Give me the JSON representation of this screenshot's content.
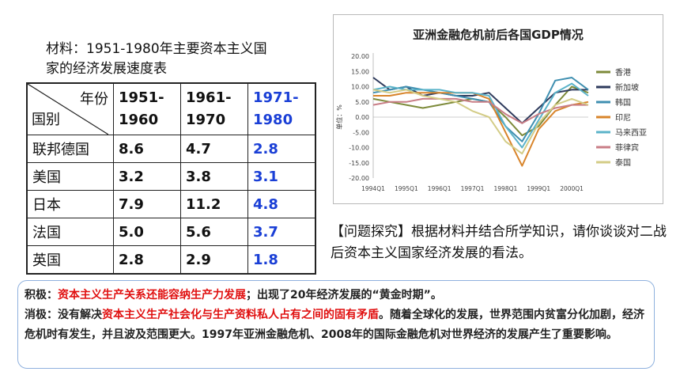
{
  "material": {
    "caption_line1": "材料：1951-1980年主要资本主义国",
    "caption_line2": "家的经济发展速度表"
  },
  "table": {
    "corner_top": "年份",
    "corner_bottom": "国别",
    "periods": [
      {
        "line1": "1951-",
        "line2": "1960"
      },
      {
        "line1": "1961-",
        "line2": "1970"
      },
      {
        "line1": "1971-",
        "line2": "1980"
      }
    ],
    "rows": [
      {
        "country": "联邦德国",
        "values": [
          "8.6",
          "4.7",
          "2.8"
        ]
      },
      {
        "country": "美国",
        "values": [
          "3.2",
          "3.8",
          "3.1"
        ]
      },
      {
        "country": "日本",
        "values": [
          "7.9",
          "11.2",
          "4.8"
        ]
      },
      {
        "country": "法国",
        "values": [
          "5.0",
          "5.6",
          "3.7"
        ]
      },
      {
        "country": "英国",
        "values": [
          "2.8",
          "2.9",
          "1.8"
        ]
      }
    ],
    "highlight_color": "#1a3fd6"
  },
  "chart_data": {
    "type": "line",
    "title": "亚洲金融危机前后各国GDP情况",
    "ylabel": "单位：%",
    "xlabel": "",
    "ylim": [
      -20,
      20
    ],
    "yticks": [
      "20.00",
      "15.00",
      "10.00",
      "5.00",
      "0.00",
      "-5.00",
      "-10.00",
      "-15.00",
      "-20.00"
    ],
    "x": [
      "1994Q1",
      "1994Q3",
      "1995Q1",
      "1995Q3",
      "1996Q1",
      "1996Q3",
      "1997Q1",
      "1997Q3",
      "1998Q1",
      "1998Q3",
      "1999Q1",
      "1999Q3",
      "2000Q1",
      "2000Q3"
    ],
    "xtick_labels": [
      "1994Q1",
      "1995Q1",
      "1996Q1",
      "1997Q1",
      "1998Q1",
      "1999Q1",
      "2000Q1"
    ],
    "legend_position": "right",
    "grid": false,
    "series": [
      {
        "name": "香港",
        "color": "#7d8a3a",
        "values": [
          6,
          5,
          4,
          3,
          4,
          5,
          6,
          5,
          0,
          -6,
          -3,
          4,
          10,
          8
        ]
      },
      {
        "name": "新加坡",
        "color": "#2e3a5c",
        "values": [
          13,
          9,
          10,
          7,
          8,
          7,
          7,
          8,
          3,
          -2,
          3,
          8,
          9,
          9
        ]
      },
      {
        "name": "韩国",
        "color": "#3f8fb0",
        "values": [
          8,
          9,
          10,
          9,
          8,
          7,
          6,
          5,
          -3,
          -8,
          1,
          12,
          13,
          9
        ]
      },
      {
        "name": "印尼",
        "color": "#d8842a",
        "values": [
          7,
          7,
          8,
          8,
          8,
          8,
          8,
          6,
          -5,
          -16,
          -4,
          2,
          4,
          5
        ]
      },
      {
        "name": "马来西亚",
        "color": "#5bb3c9",
        "values": [
          9,
          10,
          9,
          9,
          9,
          8,
          8,
          7,
          -3,
          -10,
          -1,
          8,
          11,
          7
        ]
      },
      {
        "name": "菲律宾",
        "color": "#c87d86",
        "values": [
          4,
          5,
          5,
          6,
          6,
          6,
          5,
          5,
          1,
          -2,
          1,
          3,
          4,
          4
        ]
      },
      {
        "name": "泰国",
        "color": "#d3cc86",
        "values": [
          9,
          8,
          9,
          7,
          6,
          5,
          2,
          0,
          -8,
          -12,
          -2,
          4,
          6,
          4
        ]
      }
    ]
  },
  "question": {
    "text": "【问题探究】根据材料并结合所学知识，请你谈谈对二战后资本主义国家经济发展的看法。"
  },
  "answer": {
    "positive_prefix": "积极：",
    "positive_highlight": "资本主义生产关系还能容纳生产力发展",
    "positive_rest": "；出现了20年经济发展的“黄金时期”。",
    "negative_prefix": "消极：没有解决",
    "negative_highlight": "资本主义生产社会化与生产资料私人占有之间的固有矛盾",
    "negative_rest": "。随着全球化的发展，世界范围内贫富分化加剧，经济危机时有发生，并且波及范围更大。1997年亚洲金融危机、2008年的国际金融危机对世界经济的发展产生了重要影响。"
  }
}
